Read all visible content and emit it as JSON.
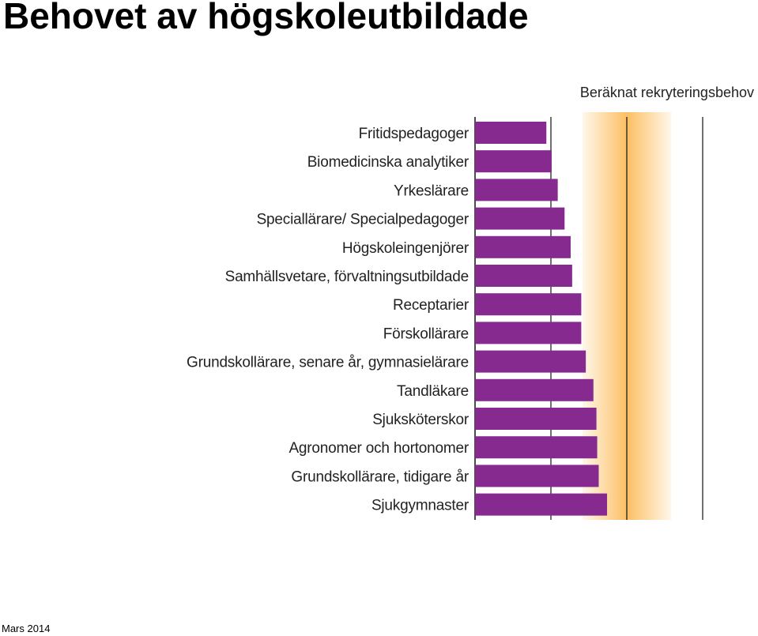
{
  "slide": {
    "title": "Behovet av högskoleutbildade",
    "footer": "Mars 2014"
  },
  "colors": {
    "bar": "#862a8f",
    "band_center": "#fcbf63",
    "band_edge": "#fff7ea",
    "reference_line": "#111111"
  },
  "chart_data": {
    "type": "bar",
    "orientation": "horizontal",
    "title": "",
    "band_label": "Beräknat rekryteringsbehov",
    "xlabel": "",
    "ylabel": "",
    "categories": [
      "Fritidspedagoger",
      "Biomedicinska analytiker",
      "Yrkeslärare",
      "Speciallärare/ Specialpedagoger",
      "Högskoleingenjörer",
      "Samhällsvetare, förvaltningsutbildade",
      "Receptarier",
      "Förskollärare",
      "Grundskollärare, senare år, gymnasielärare",
      "Tandläkare",
      "Sjuksköterskor",
      "Agronomer och hortonomer",
      "Grundskollärare, tidigare år",
      "Sjukgymnaster"
    ],
    "values": [
      0.94,
      1.01,
      1.09,
      1.18,
      1.26,
      1.28,
      1.4,
      1.4,
      1.46,
      1.56,
      1.6,
      1.61,
      1.63,
      1.74
    ],
    "xlim": [
      0,
      3
    ],
    "reference_lines": [
      1,
      2,
      3
    ],
    "shaded_band": [
      1.5,
      2.5
    ],
    "tick_labels_shown": false,
    "grid": false,
    "legend": "none"
  }
}
